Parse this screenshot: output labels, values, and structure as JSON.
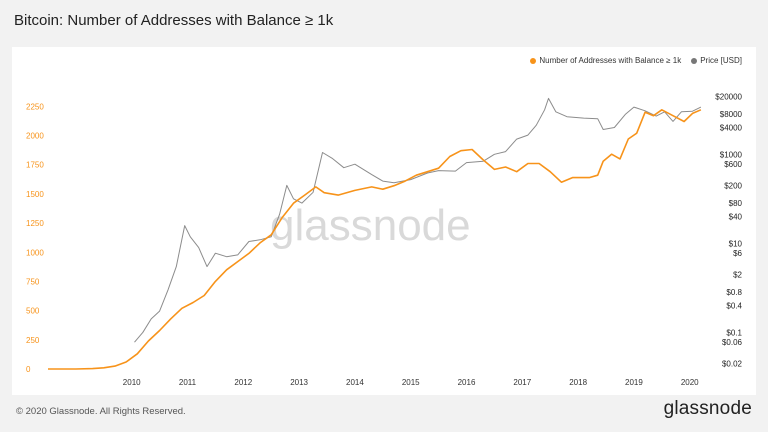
{
  "header": {
    "title": "Bitcoin: Number of Addresses with Balance ≥ 1k"
  },
  "footer": {
    "copyright": "© 2020 Glassnode. All Rights Reserved.",
    "logo_text": "glassnode"
  },
  "watermark": "glassnode",
  "colors": {
    "addresses": "#f7931a",
    "price": "#8c8c8c",
    "left_axis_text": "#f7931a"
  },
  "chart_data": {
    "type": "line",
    "title": "Bitcoin: Number of Addresses with Balance ≥ 1k",
    "legend": {
      "placement": "top-right",
      "entries": [
        "Number of Addresses with Balance ≥ 1k",
        "Price [USD]"
      ]
    },
    "x_ticks": [
      "2010",
      "2011",
      "2012",
      "2013",
      "2014",
      "2015",
      "2016",
      "2017",
      "2018",
      "2019",
      "2020"
    ],
    "xlim": [
      2009.0,
      2020.72
    ],
    "y_left": {
      "ticks": [
        "0",
        "250",
        "500",
        "750",
        "1000",
        "1250",
        "1500",
        "1750",
        "2000",
        "2250"
      ],
      "ylim": [
        0,
        2450
      ]
    },
    "y_right": {
      "scale": "log",
      "ticks": [
        "$0.02",
        "$0.06",
        "$0.1",
        "$0.4",
        "$0.8",
        "$2",
        "$6",
        "$10",
        "$40",
        "$80",
        "$200",
        "$600",
        "$1000",
        "$4000",
        "$8000",
        "$20000"
      ],
      "tick_values": [
        0.02,
        0.06,
        0.1,
        0.4,
        0.8,
        2,
        6,
        10,
        40,
        80,
        200,
        600,
        1000,
        4000,
        8000,
        20000
      ],
      "ylim": [
        0.015,
        40000
      ]
    },
    "grid": false,
    "series": [
      {
        "name": "Number of Addresses with Balance ≥ 1k",
        "axis": "left",
        "points": [
          [
            2009.0,
            0
          ],
          [
            2009.5,
            0
          ],
          [
            2009.8,
            3
          ],
          [
            2010.0,
            10
          ],
          [
            2010.2,
            25
          ],
          [
            2010.4,
            60
          ],
          [
            2010.6,
            130
          ],
          [
            2010.8,
            240
          ],
          [
            2011.0,
            330
          ],
          [
            2011.2,
            430
          ],
          [
            2011.4,
            520
          ],
          [
            2011.6,
            570
          ],
          [
            2011.8,
            630
          ],
          [
            2012.0,
            750
          ],
          [
            2012.2,
            850
          ],
          [
            2012.4,
            920
          ],
          [
            2012.6,
            990
          ],
          [
            2012.8,
            1080
          ],
          [
            2013.0,
            1150
          ],
          [
            2013.2,
            1300
          ],
          [
            2013.4,
            1420
          ],
          [
            2013.6,
            1490
          ],
          [
            2013.8,
            1560
          ],
          [
            2013.95,
            1510
          ],
          [
            2014.2,
            1490
          ],
          [
            2014.5,
            1530
          ],
          [
            2014.8,
            1560
          ],
          [
            2015.0,
            1540
          ],
          [
            2015.2,
            1570
          ],
          [
            2015.4,
            1610
          ],
          [
            2015.6,
            1660
          ],
          [
            2015.8,
            1690
          ],
          [
            2016.0,
            1720
          ],
          [
            2016.2,
            1820
          ],
          [
            2016.4,
            1870
          ],
          [
            2016.6,
            1880
          ],
          [
            2016.8,
            1790
          ],
          [
            2017.0,
            1710
          ],
          [
            2017.2,
            1730
          ],
          [
            2017.4,
            1690
          ],
          [
            2017.6,
            1760
          ],
          [
            2017.8,
            1760
          ],
          [
            2018.0,
            1690
          ],
          [
            2018.2,
            1600
          ],
          [
            2018.4,
            1640
          ],
          [
            2018.7,
            1640
          ],
          [
            2018.85,
            1660
          ],
          [
            2018.95,
            1780
          ],
          [
            2019.1,
            1840
          ],
          [
            2019.25,
            1800
          ],
          [
            2019.4,
            1970
          ],
          [
            2019.55,
            2020
          ],
          [
            2019.7,
            2200
          ],
          [
            2019.85,
            2170
          ],
          [
            2020.0,
            2220
          ],
          [
            2020.2,
            2170
          ],
          [
            2020.4,
            2120
          ],
          [
            2020.55,
            2190
          ],
          [
            2020.7,
            2220
          ]
        ]
      },
      {
        "name": "Price [USD]",
        "axis": "right",
        "points": [
          [
            2010.55,
            0.06
          ],
          [
            2010.7,
            0.1
          ],
          [
            2010.85,
            0.2
          ],
          [
            2011.0,
            0.3
          ],
          [
            2011.15,
            0.9
          ],
          [
            2011.3,
            3
          ],
          [
            2011.45,
            25
          ],
          [
            2011.55,
            14
          ],
          [
            2011.7,
            8
          ],
          [
            2011.85,
            3
          ],
          [
            2012.0,
            6
          ],
          [
            2012.2,
            5
          ],
          [
            2012.4,
            5.5
          ],
          [
            2012.6,
            11
          ],
          [
            2012.8,
            12
          ],
          [
            2013.0,
            14
          ],
          [
            2013.15,
            45
          ],
          [
            2013.28,
            200
          ],
          [
            2013.4,
            100
          ],
          [
            2013.55,
            80
          ],
          [
            2013.75,
            140
          ],
          [
            2013.92,
            1100
          ],
          [
            2014.1,
            800
          ],
          [
            2014.3,
            500
          ],
          [
            2014.5,
            600
          ],
          [
            2014.8,
            350
          ],
          [
            2015.0,
            250
          ],
          [
            2015.2,
            230
          ],
          [
            2015.5,
            270
          ],
          [
            2015.8,
            380
          ],
          [
            2016.0,
            430
          ],
          [
            2016.3,
            420
          ],
          [
            2016.5,
            650
          ],
          [
            2016.8,
            700
          ],
          [
            2017.0,
            1000
          ],
          [
            2017.2,
            1150
          ],
          [
            2017.4,
            2200
          ],
          [
            2017.6,
            2700
          ],
          [
            2017.75,
            4500
          ],
          [
            2017.9,
            10000
          ],
          [
            2017.97,
            18000
          ],
          [
            2018.1,
            9000
          ],
          [
            2018.3,
            7000
          ],
          [
            2018.6,
            6500
          ],
          [
            2018.85,
            6300
          ],
          [
            2018.95,
            3600
          ],
          [
            2019.15,
            4000
          ],
          [
            2019.35,
            8000
          ],
          [
            2019.5,
            11500
          ],
          [
            2019.7,
            9500
          ],
          [
            2019.9,
            7200
          ],
          [
            2020.05,
            9000
          ],
          [
            2020.2,
            5500
          ],
          [
            2020.35,
            9000
          ],
          [
            2020.55,
            9300
          ],
          [
            2020.7,
            11500
          ]
        ]
      }
    ]
  }
}
